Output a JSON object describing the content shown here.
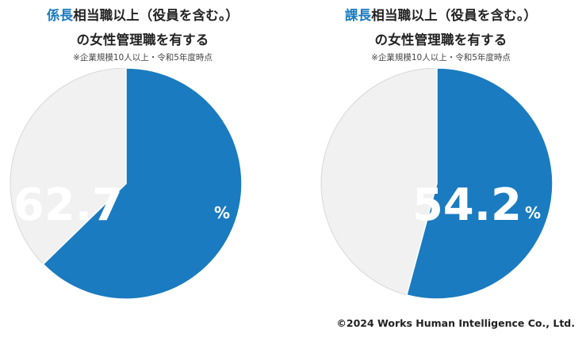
{
  "colors": {
    "accent": "#1a7bc0",
    "rest": "#f1f1f1",
    "border": "#d8d8d8"
  },
  "charts": [
    {
      "title_accent": "係長",
      "title_rest": "相当職以上（役員を含む。）",
      "title_line2": "の女性管理職を有する",
      "note": "※企業規模10人以上・令和5年度時点",
      "value_text": "62.7",
      "unit": "%"
    },
    {
      "title_accent": "課長",
      "title_rest": "相当職以上（役員を含む。）",
      "title_line2": "の女性管理職を有する",
      "note": "※企業規模10人以上・令和5年度時点",
      "value_text": "54.2",
      "unit": "%"
    }
  ],
  "chart_data": [
    {
      "type": "pie",
      "title": "係長相当職以上（役員を含む。）の女性管理職を有する",
      "subtitle": "※企業規模10人以上・令和5年度時点",
      "values": [
        62.7,
        37.3
      ],
      "unit": "%"
    },
    {
      "type": "pie",
      "title": "課長相当職以上（役員を含む。）の女性管理職を有する",
      "subtitle": "※企業規模10人以上・令和5年度時点",
      "values": [
        54.2,
        45.8
      ],
      "unit": "%"
    }
  ],
  "copyright": "©2024 Works Human Intelligence Co., Ltd."
}
